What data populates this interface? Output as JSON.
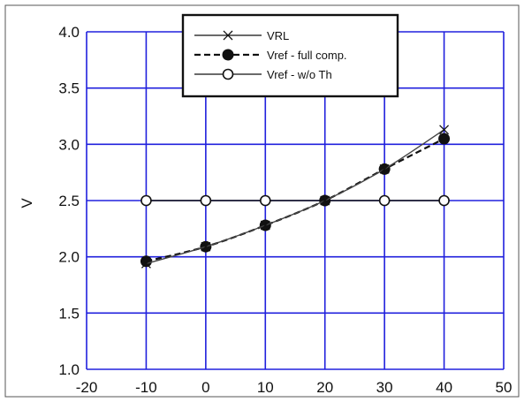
{
  "chart_data": {
    "type": "line",
    "title": "",
    "xlabel": "",
    "ylabel": "V",
    "xlim": [
      -20,
      50
    ],
    "ylim": [
      1.0,
      4.0
    ],
    "x_ticks": [
      "-20",
      "-10",
      "0",
      "10",
      "20",
      "30",
      "40",
      "50"
    ],
    "y_ticks": [
      "1.0",
      "1.5",
      "2.0",
      "2.5",
      "3.0",
      "3.5",
      "4.0"
    ],
    "grid": true,
    "legend_position": "top-center",
    "colors": {
      "grid": "#2020dd",
      "series": "#111111"
    },
    "series": [
      {
        "name": "VRL",
        "marker": "x",
        "line": "solid",
        "x": [
          -10,
          0,
          10,
          20,
          30,
          40
        ],
        "y": [
          1.94,
          2.09,
          2.28,
          2.5,
          2.78,
          3.13
        ]
      },
      {
        "name": "Vref - full comp.",
        "marker": "filled-circle",
        "line": "dashed",
        "x": [
          -10,
          0,
          10,
          20,
          30,
          40
        ],
        "y": [
          1.96,
          2.09,
          2.28,
          2.5,
          2.78,
          3.05
        ]
      },
      {
        "name": "Vref - w/o Th",
        "marker": "open-circle",
        "line": "solid",
        "x": [
          -10,
          0,
          10,
          20,
          30,
          40
        ],
        "y": [
          2.5,
          2.5,
          2.5,
          2.5,
          2.5,
          2.5
        ]
      }
    ]
  }
}
